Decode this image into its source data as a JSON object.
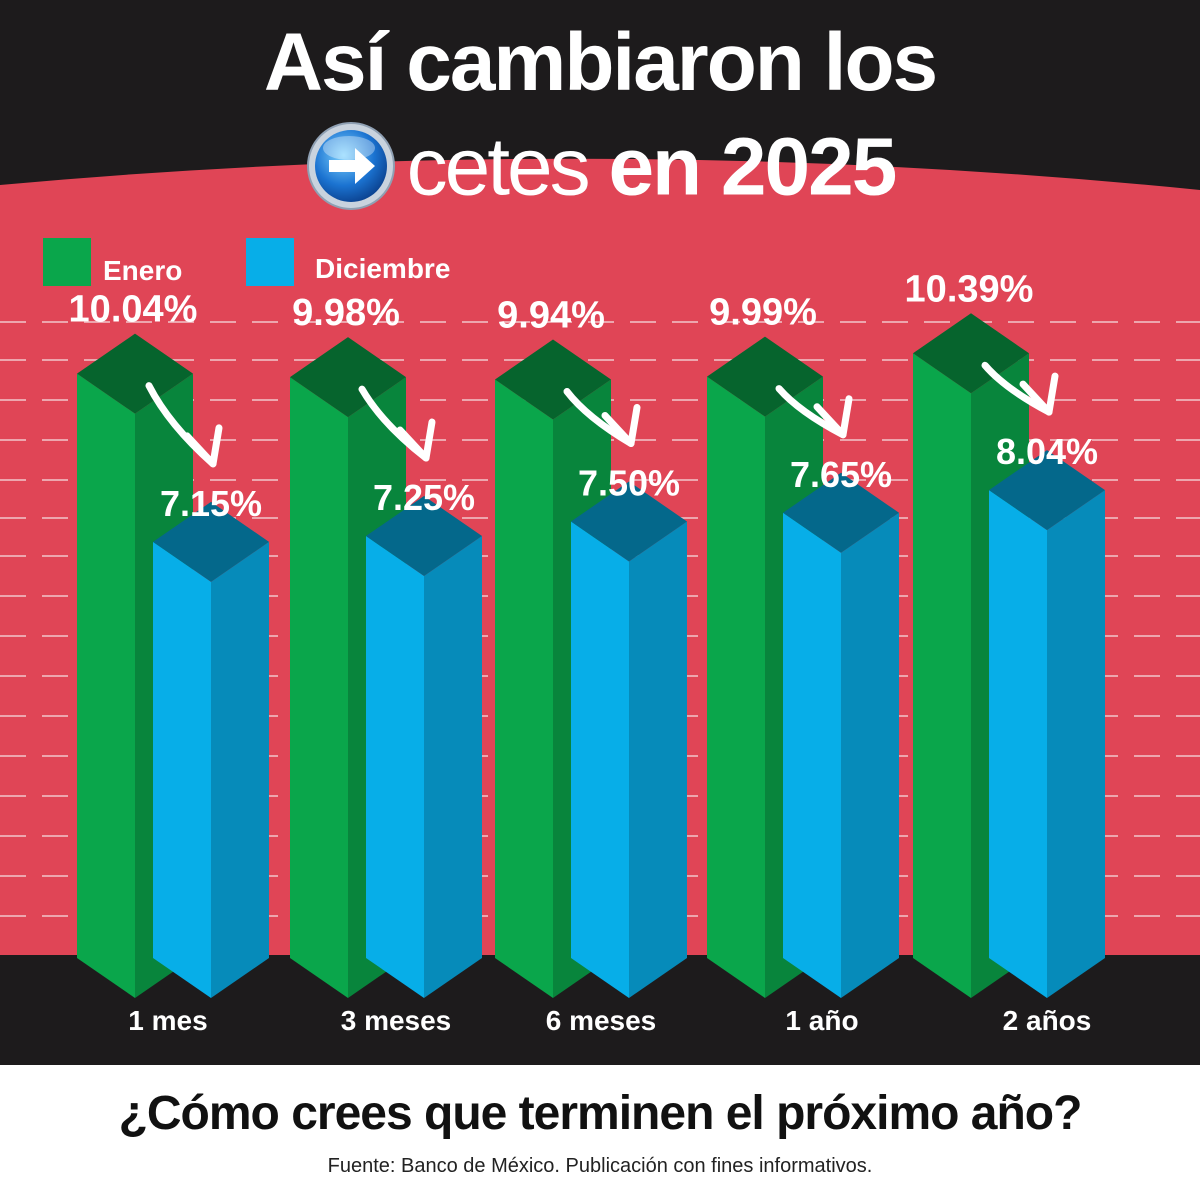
{
  "header": {
    "title_line1": "Así cambiaron los",
    "brand_name": "cetes",
    "title_line2_rest": "en 2025",
    "logo_icon": "arrow-right-circle-icon"
  },
  "colors": {
    "background_red": "#e04556",
    "header_dark": "#1d1b1c",
    "enero_green": "#0aa64b",
    "diciembre_blue": "#07aee8",
    "arrow": "#ffffff"
  },
  "chart_data": {
    "type": "bar",
    "categories": [
      "1 mes",
      "3 meses",
      "6 meses",
      "1 año",
      "2 años"
    ],
    "series": [
      {
        "name": "Enero",
        "values": [
          10.04,
          9.98,
          9.94,
          9.99,
          10.39
        ],
        "labels": [
          "10.04%",
          "9.98%",
          "9.94%",
          "9.99%",
          "10.39%"
        ]
      },
      {
        "name": "Diciembre",
        "values": [
          7.15,
          7.25,
          7.5,
          7.65,
          8.04
        ],
        "labels": [
          "7.15%",
          "7.25%",
          "7.50%",
          "7.65%",
          "8.04%"
        ]
      }
    ],
    "unit": "%",
    "grid": true,
    "legend_position": "top-left",
    "style": "3d-bars"
  },
  "footer": {
    "question": "¿Cómo crees que terminen el próximo año?",
    "source": "Fuente: Banco de México. Publicación con fines informativos."
  }
}
